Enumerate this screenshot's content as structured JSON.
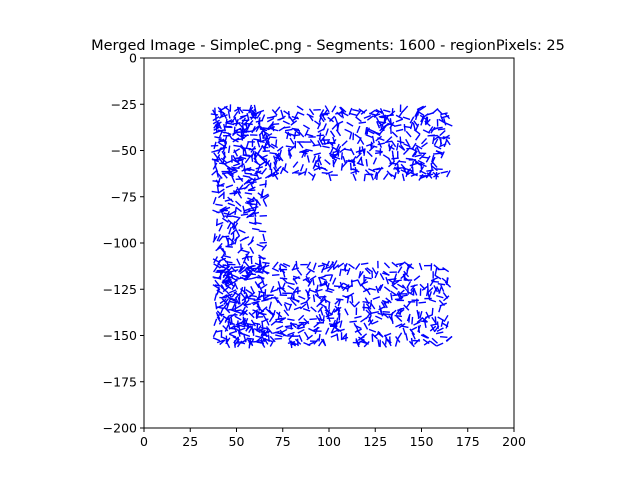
{
  "chart_data": {
    "type": "scatter",
    "mark": "short line segments",
    "title": "Merged Image - SimpleC.png - Segments: 1600 - regionPixels: 25",
    "xlabel": "",
    "ylabel": "",
    "xlim": [
      0,
      200
    ],
    "ylim": [
      -200,
      0
    ],
    "x_ticks": [
      0,
      25,
      50,
      75,
      100,
      125,
      150,
      175,
      200
    ],
    "y_ticks": [
      0,
      -25,
      -50,
      -75,
      -100,
      -125,
      -150,
      -175,
      -200
    ],
    "x_tick_labels": [
      "0",
      "25",
      "50",
      "75",
      "100",
      "125",
      "150",
      "175",
      "200"
    ],
    "y_tick_labels": [
      "0",
      "−25",
      "−50",
      "−75",
      "−100",
      "−125",
      "−150",
      "−175",
      "−200"
    ],
    "grid": false,
    "legend": "none",
    "segment_color": "#0000ff",
    "segment_count": 1600,
    "segment_length": 4,
    "shape": "C",
    "regions": [
      {
        "name": "top-bar",
        "x_range": [
          38,
          165
        ],
        "y_range": [
          -65,
          -27
        ]
      },
      {
        "name": "left-bar",
        "x_range": [
          38,
          66
        ],
        "y_range": [
          -155,
          -27
        ]
      },
      {
        "name": "bottom-bar",
        "x_range": [
          38,
          165
        ],
        "y_range": [
          -155,
          -111
        ]
      }
    ]
  }
}
